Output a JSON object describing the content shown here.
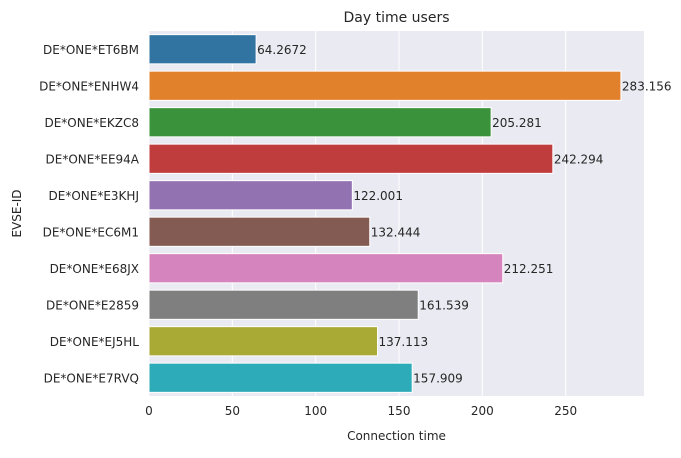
{
  "chart_data": {
    "type": "bar",
    "orientation": "horizontal",
    "title": "Day time users",
    "xlabel": "Connection time",
    "ylabel": "EVSE-ID",
    "xlim": [
      0,
      297
    ],
    "xticks": [
      0,
      50,
      100,
      150,
      200,
      250
    ],
    "grid": true,
    "categories": [
      "DE*ONE*ET6BM",
      "DE*ONE*ENHW4",
      "DE*ONE*EKZC8",
      "DE*ONE*EE94A",
      "DE*ONE*E3KHJ",
      "DE*ONE*EC6M1",
      "DE*ONE*E68JX",
      "DE*ONE*E2859",
      "DE*ONE*EJ5HL",
      "DE*ONE*E7RVQ"
    ],
    "values": [
      64.2672,
      283.156,
      205.281,
      242.294,
      122.001,
      132.444,
      212.251,
      161.539,
      137.113,
      157.909
    ],
    "value_labels": [
      "64.2672",
      "283.156",
      "205.281",
      "242.294",
      "122.001",
      "132.444",
      "212.251",
      "161.539",
      "137.113",
      "157.909"
    ],
    "colors": [
      "#3274a1",
      "#e1812c",
      "#3a923a",
      "#c03d3e",
      "#9372b2",
      "#845b53",
      "#d684bd",
      "#7f7f7f",
      "#a9aa35",
      "#2eabb8"
    ],
    "background": "#eaeaf2"
  }
}
